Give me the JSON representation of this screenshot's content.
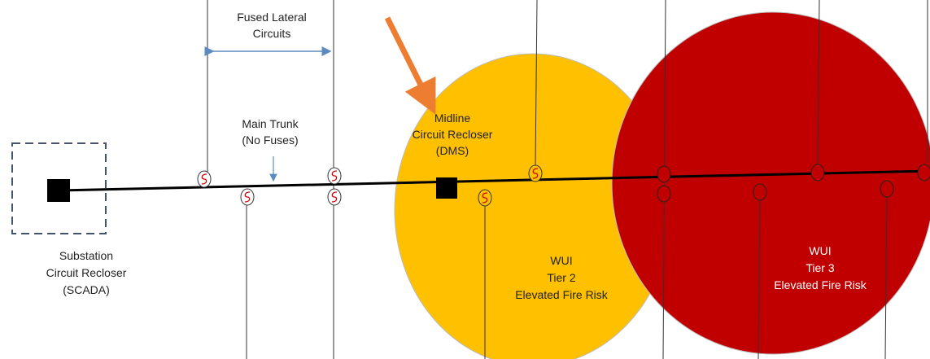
{
  "labels": {
    "fused_lateral": [
      "Fused Lateral",
      "Circuits"
    ],
    "main_trunk": [
      "Main Trunk",
      "(No Fuses)"
    ],
    "midline": [
      "Midline",
      "Circuit Recloser",
      "(DMS)"
    ],
    "substation": [
      "Substation",
      "Circuit Recloser",
      "(SCADA)"
    ],
    "tier2": [
      "WUI",
      "Tier 2",
      "Elevated Fire Risk"
    ],
    "tier3": [
      "WUI",
      "Tier 3",
      "Elevated Fire Risk"
    ]
  }
}
